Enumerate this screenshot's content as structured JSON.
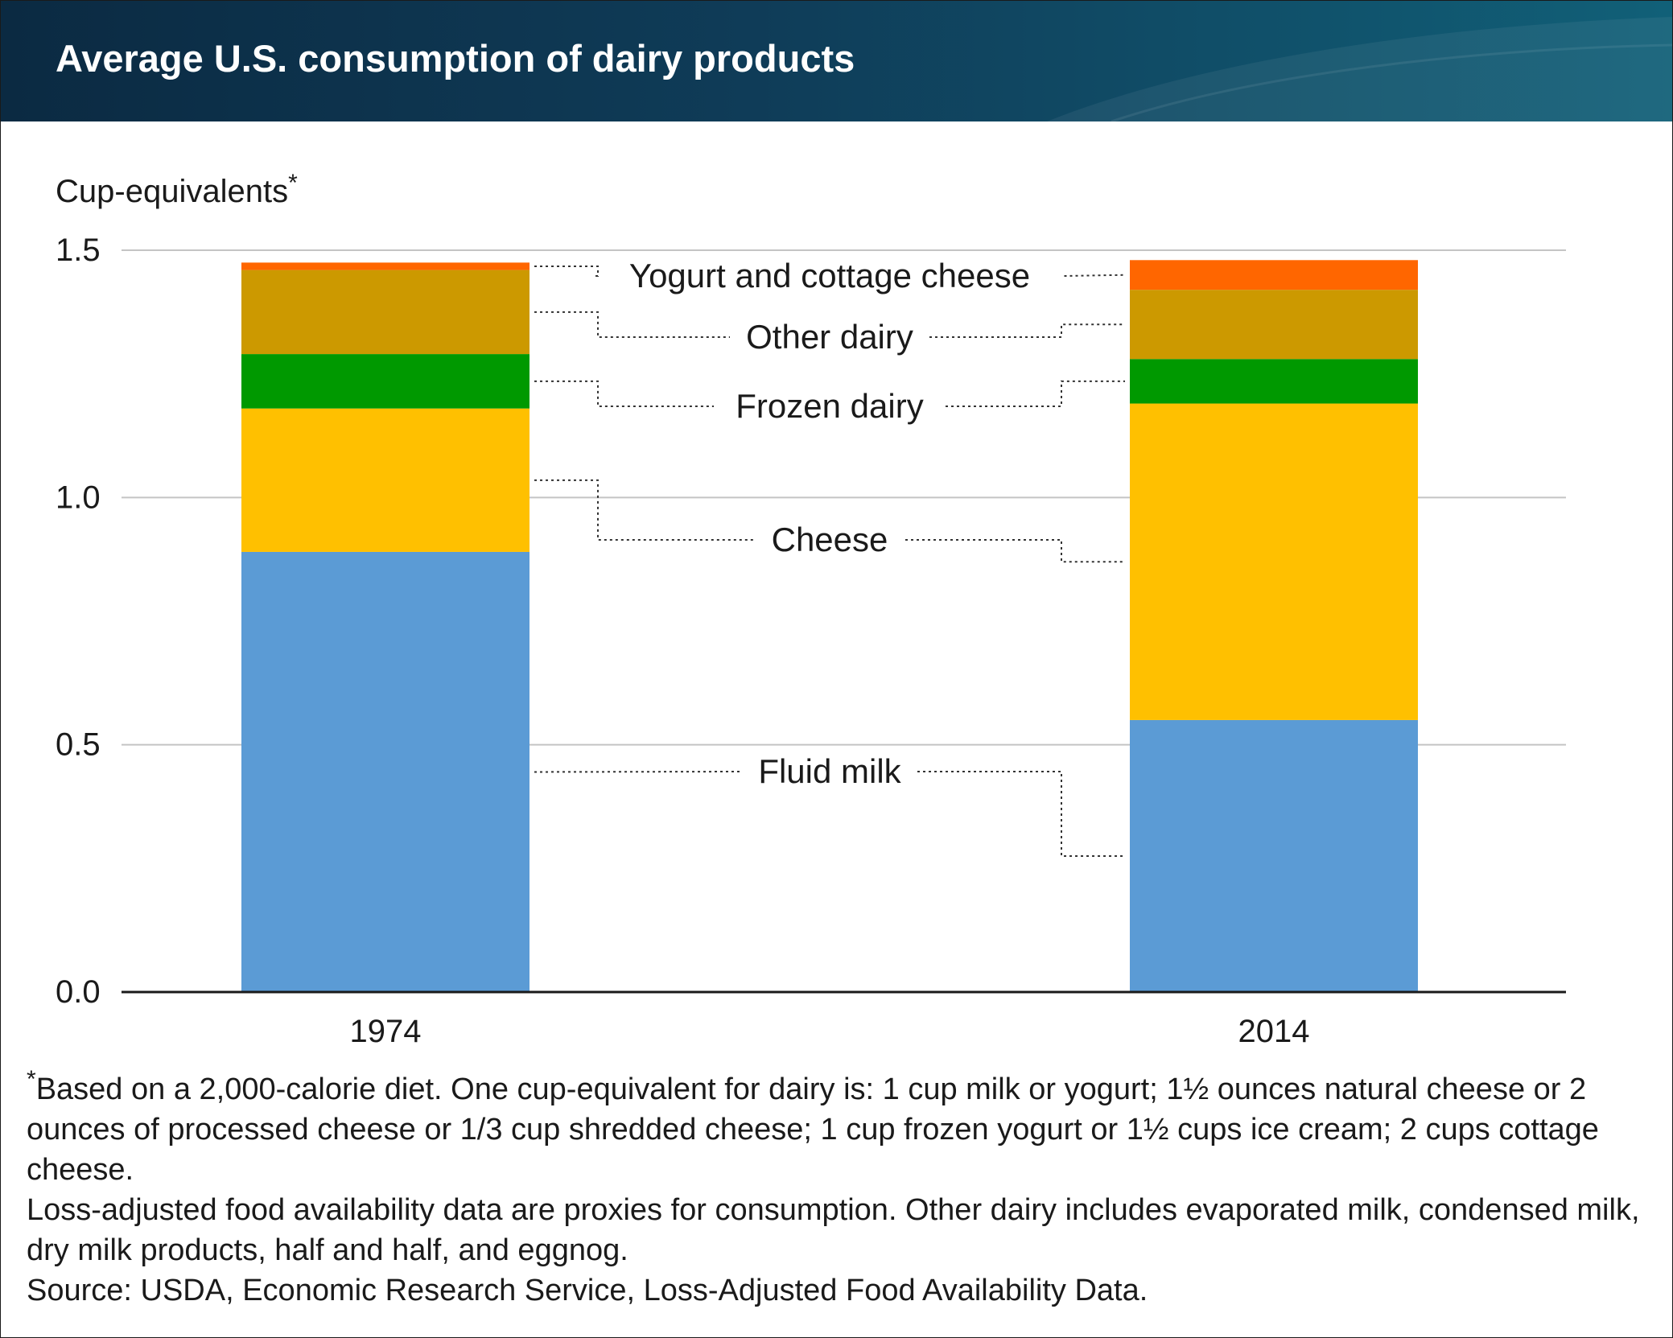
{
  "title": "Average U.S. consumption of dairy products",
  "chart_data": {
    "type": "bar",
    "stacked": true,
    "title": "Average U.S. consumption of dairy products",
    "ylabel": "Cup-equivalents*",
    "xlabel": "",
    "categories": [
      "1974",
      "2014"
    ],
    "ylim": [
      0,
      1.5
    ],
    "yticks": [
      "0.0",
      "0.5",
      "1.0",
      "1.5"
    ],
    "grid": true,
    "series": [
      {
        "name": "Fluid milk",
        "color": "#5b9bd5",
        "values": [
          0.89,
          0.55
        ]
      },
      {
        "name": "Cheese",
        "color": "#ffc000",
        "values": [
          0.29,
          0.64
        ]
      },
      {
        "name": "Frozen dairy",
        "color": "#009900",
        "values": [
          0.11,
          0.09
        ]
      },
      {
        "name": "Other dairy",
        "color": "#cc9900",
        "values": [
          0.17,
          0.14
        ]
      },
      {
        "name": "Yogurt and cottage cheese",
        "color": "#ff6600",
        "values": [
          0.015,
          0.06
        ]
      }
    ]
  },
  "footnote": {
    "star": "*",
    "diet_note": "Based on a 2,000-calorie diet. One cup-equivalent for dairy is: 1 cup milk or yogurt; 1½ ounces natural cheese or 2 ounces of processed cheese or 1/3 cup shredded cheese; 1 cup frozen yogurt or 1½ cups ice cream; 2 cups cottage cheese.",
    "data_note": "Loss-adjusted food availability data are proxies for consumption. Other dairy includes evaporated milk, condensed milk, dry milk products, half and half, and eggnog.",
    "source": "Source: USDA, Economic Research Service, Loss-Adjusted Food Availability Data."
  }
}
